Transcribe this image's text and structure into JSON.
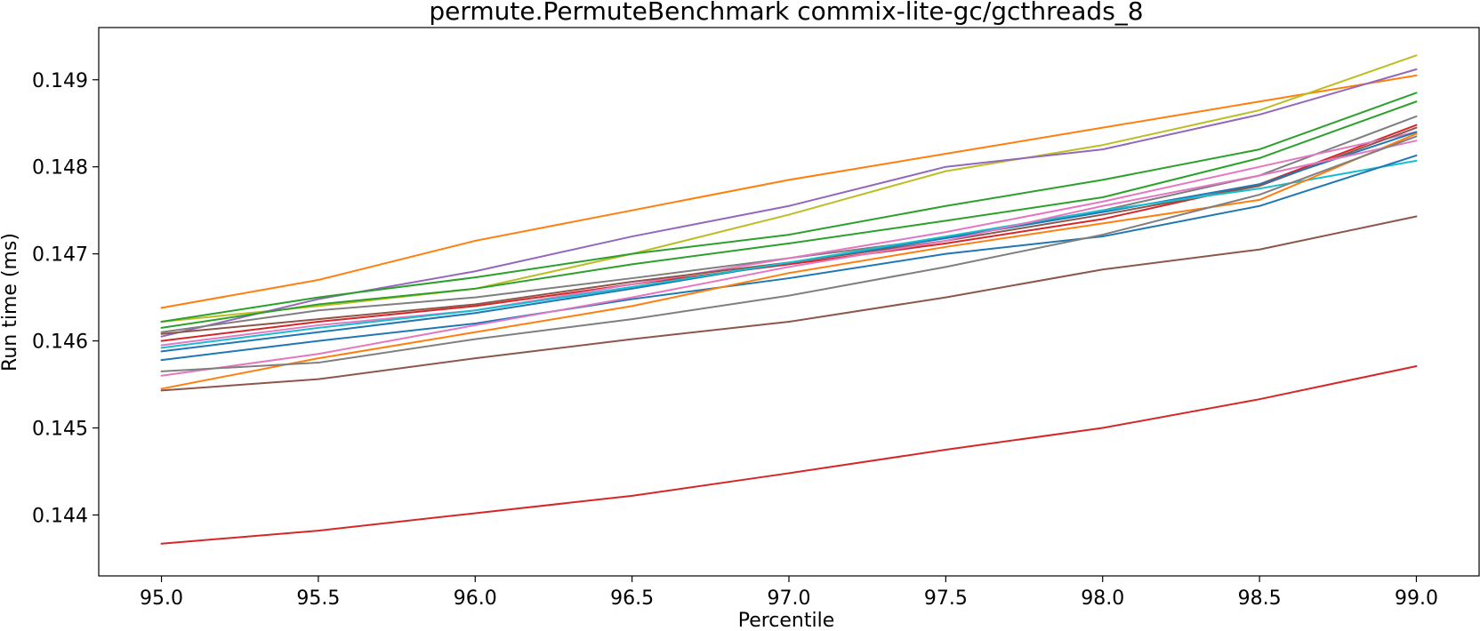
{
  "chart_data": {
    "type": "line",
    "title": "permute.PermuteBenchmark commix-lite-gc/gcthreads_8",
    "xlabel": "Percentile",
    "ylabel": "Run time (ms)",
    "xlim": [
      94.8,
      99.2
    ],
    "ylim": [
      0.1433,
      0.1496
    ],
    "xticks": [
      95.0,
      95.5,
      96.0,
      96.5,
      97.0,
      97.5,
      98.0,
      98.5,
      99.0
    ],
    "xtick_labels": [
      "95.0",
      "95.5",
      "96.0",
      "96.5",
      "97.0",
      "97.5",
      "98.0",
      "98.5",
      "99.0"
    ],
    "yticks": [
      0.144,
      0.145,
      0.146,
      0.147,
      0.148,
      0.149
    ],
    "ytick_labels": [
      "0.144",
      "0.145",
      "0.146",
      "0.147",
      "0.148",
      "0.149"
    ],
    "grid": false,
    "x": [
      95.0,
      95.5,
      96.0,
      96.5,
      97.0,
      97.5,
      98.0,
      98.5,
      99.0
    ],
    "series": [
      {
        "color": "#ff7f0e",
        "values": [
          0.14638,
          0.1467,
          0.14715,
          0.1475,
          0.14785,
          0.14815,
          0.14845,
          0.14875,
          0.14905
        ]
      },
      {
        "color": "#bcbd22",
        "values": [
          0.14622,
          0.1464,
          0.1466,
          0.147,
          0.14745,
          0.14795,
          0.14825,
          0.14865,
          0.14928
        ]
      },
      {
        "color": "#9467bd",
        "values": [
          0.14605,
          0.14648,
          0.1468,
          0.1472,
          0.14755,
          0.148,
          0.1482,
          0.1486,
          0.14912
        ]
      },
      {
        "color": "#2ca02c",
        "values": [
          0.14622,
          0.1465,
          0.14673,
          0.147,
          0.14722,
          0.14755,
          0.14785,
          0.1482,
          0.14885
        ]
      },
      {
        "color": "#2ca02c",
        "values": [
          0.14615,
          0.14642,
          0.1466,
          0.14688,
          0.14712,
          0.14738,
          0.14765,
          0.1481,
          0.14875
        ]
      },
      {
        "color": "#7f7f7f",
        "values": [
          0.1461,
          0.14635,
          0.1465,
          0.14672,
          0.14695,
          0.14718,
          0.1475,
          0.1479,
          0.14858
        ]
      },
      {
        "color": "#d62728",
        "values": [
          0.146,
          0.14622,
          0.1464,
          0.14665,
          0.14688,
          0.14712,
          0.1474,
          0.1478,
          0.14848
        ]
      },
      {
        "color": "#e377c2",
        "values": [
          0.14595,
          0.14618,
          0.14635,
          0.14665,
          0.14695,
          0.14725,
          0.1476,
          0.148,
          0.1484
        ]
      },
      {
        "color": "#8c564b",
        "values": [
          0.14608,
          0.14625,
          0.14642,
          0.14668,
          0.1469,
          0.14715,
          0.14745,
          0.14778,
          0.14845
        ]
      },
      {
        "color": "#1f77b4",
        "values": [
          0.14588,
          0.1461,
          0.14632,
          0.1466,
          0.1469,
          0.14718,
          0.14748,
          0.1478,
          0.1484
        ]
      },
      {
        "color": "#17becf",
        "values": [
          0.14592,
          0.14615,
          0.14635,
          0.14662,
          0.1469,
          0.1472,
          0.1475,
          0.14775,
          0.14807
        ]
      },
      {
        "color": "#1f77b4",
        "values": [
          0.14578,
          0.146,
          0.1462,
          0.14648,
          0.14672,
          0.147,
          0.1472,
          0.14755,
          0.14813
        ]
      },
      {
        "color": "#ff7f0e",
        "values": [
          0.14545,
          0.1458,
          0.1461,
          0.1464,
          0.14678,
          0.14708,
          0.14735,
          0.14762,
          0.14838
        ]
      },
      {
        "color": "#e377c2",
        "values": [
          0.1456,
          0.14585,
          0.14618,
          0.1465,
          0.14685,
          0.14715,
          0.14755,
          0.1479,
          0.1483
        ]
      },
      {
        "color": "#7f7f7f",
        "values": [
          0.14565,
          0.14575,
          0.14602,
          0.14625,
          0.14652,
          0.14685,
          0.14722,
          0.14768,
          0.14835
        ]
      },
      {
        "color": "#8c564b",
        "values": [
          0.14543,
          0.14556,
          0.1458,
          0.14602,
          0.14622,
          0.1465,
          0.14682,
          0.14705,
          0.14743
        ]
      },
      {
        "color": "#d62728",
        "values": [
          0.14367,
          0.14382,
          0.14402,
          0.14422,
          0.14448,
          0.14475,
          0.145,
          0.14533,
          0.14571
        ]
      }
    ]
  }
}
